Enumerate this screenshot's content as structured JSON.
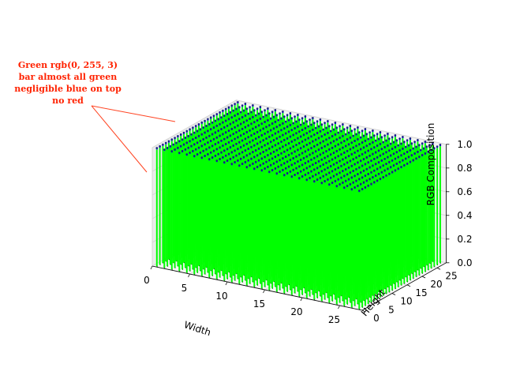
{
  "chart_data": {
    "type": "bar3d",
    "title": "",
    "xlabel": "Width",
    "ylabel": "Height",
    "zlabel": "RGB Composition",
    "x_ticks": [
      "0",
      "5",
      "10",
      "15",
      "20",
      "25"
    ],
    "y_ticks": [
      "0",
      "5",
      "10",
      "15",
      "20",
      "25"
    ],
    "z_ticks": [
      "0.0",
      "0.2",
      "0.4",
      "0.6",
      "0.8",
      "1.0"
    ],
    "xlim": [
      0,
      28
    ],
    "ylim": [
      0,
      28
    ],
    "zlim": [
      0,
      1
    ],
    "grid": [
      28,
      28
    ],
    "pixel_rgb": [
      0,
      255,
      3
    ],
    "series": [
      {
        "name": "red",
        "value": 0.0,
        "color": "#ff0000"
      },
      {
        "name": "green",
        "value": 0.988,
        "color": "#00ff00"
      },
      {
        "name": "blue",
        "value": 0.012,
        "color": "#0000ff"
      }
    ],
    "annotation": {
      "lines": [
        "Green rgb(0, 255, 3)",
        "bar almost all green",
        "negligible blue on top",
        "no red"
      ],
      "color": "#ff2200"
    }
  }
}
